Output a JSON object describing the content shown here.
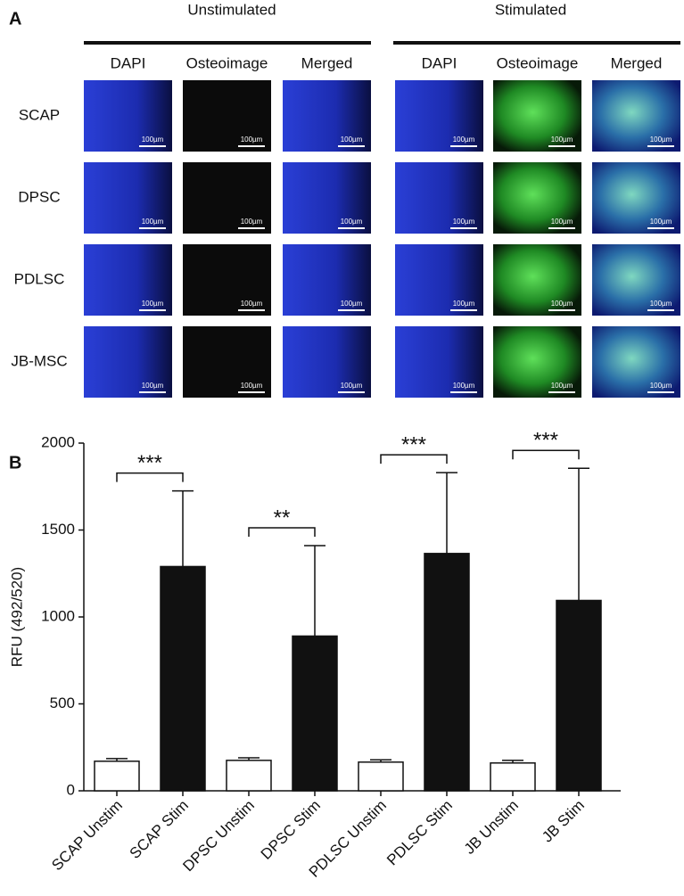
{
  "panel_a": {
    "label": "A",
    "groups": [
      "Unstimulated",
      "Stimulated"
    ],
    "columns": [
      "DAPI",
      "Osteoimage",
      "Merged"
    ],
    "rows": [
      "SCAP",
      "DPSC",
      "PDLSC",
      "JB-MSC"
    ],
    "scale_label": "100µm"
  },
  "chart_data": {
    "type": "bar",
    "panel_label": "B",
    "ylabel": "RFU (492/520)",
    "categories": [
      "SCAP Unstim",
      "SCAP Stim",
      "DPSC Unstim",
      "DPSC Stim",
      "PDLSC Unstim",
      "PDLSC Stim",
      "JB Unstim",
      "JB Stim"
    ],
    "values": [
      170,
      1290,
      175,
      890,
      165,
      1365,
      160,
      1095
    ],
    "errors": [
      15,
      435,
      15,
      520,
      13,
      465,
      15,
      760
    ],
    "colors": [
      "#ffffff",
      "#111111",
      "#ffffff",
      "#111111",
      "#ffffff",
      "#111111",
      "#ffffff",
      "#111111"
    ],
    "ylim": [
      0,
      2000
    ],
    "yticks": [
      0,
      500,
      1000,
      1500,
      2000
    ],
    "annotations": [
      {
        "text": "***",
        "between": [
          0,
          1
        ]
      },
      {
        "text": "**",
        "between": [
          2,
          3
        ]
      },
      {
        "text": "***",
        "between": [
          4,
          5
        ]
      },
      {
        "text": "***",
        "between": [
          6,
          7
        ]
      }
    ]
  }
}
